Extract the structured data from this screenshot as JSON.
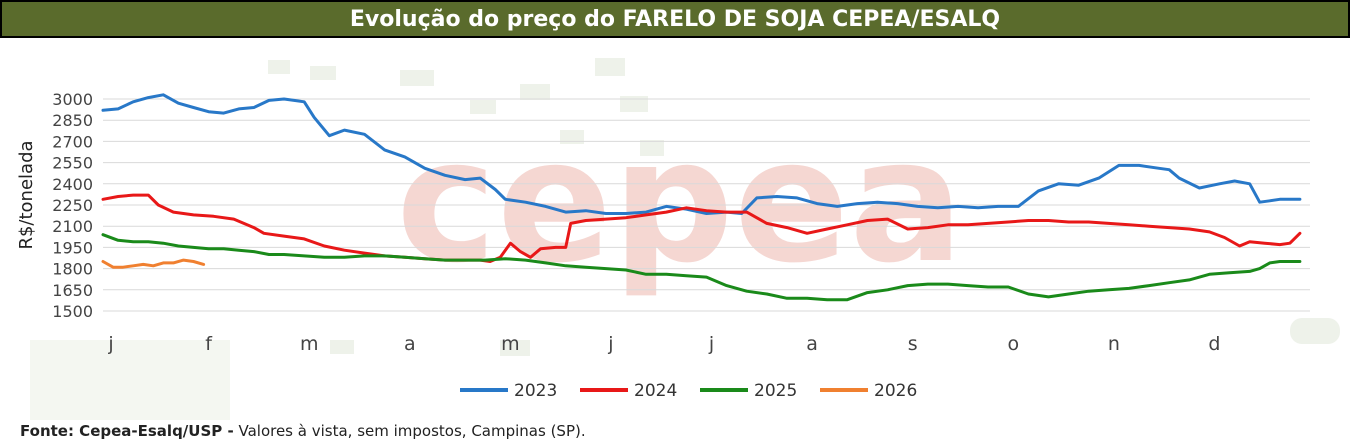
{
  "header": {
    "title": "Evolução do preço do FARELO DE SOJA CEPEA/ESALQ"
  },
  "watermark": {
    "text": "cepea",
    "color": "#e9a79d"
  },
  "footer": {
    "source_bold": "Fonte: Cepea-Esalq/USP -",
    "source_text": " Valores à vista, sem impostos, Campinas (SP)."
  },
  "chart_data": {
    "type": "line",
    "title": "Evolução do preço do FARELO DE SOJA CEPEA/ESALQ",
    "xlabel": "",
    "ylabel": "R$/tonelada",
    "ylim": [
      1500,
      3000
    ],
    "yticks": [
      1500,
      1650,
      1800,
      1950,
      2100,
      2250,
      2400,
      2550,
      2700,
      2850,
      3000
    ],
    "x_ticklabels": [
      "j",
      "f",
      "m",
      "a",
      "m",
      "j",
      "j",
      "a",
      "s",
      "o",
      "n",
      "d"
    ],
    "x_unit": "month index (0 = start of January, 12 = end of December)",
    "grid": true,
    "legend_position": "bottom-center",
    "series": [
      {
        "name": "2023",
        "color": "#2878c8",
        "x": [
          0,
          0.15,
          0.3,
          0.45,
          0.6,
          0.75,
          0.9,
          1.05,
          1.2,
          1.35,
          1.5,
          1.65,
          1.8,
          1.9,
          2.0,
          2.1,
          2.25,
          2.4,
          2.6,
          2.8,
          3.0,
          3.2,
          3.4,
          3.6,
          3.75,
          3.9,
          4.0,
          4.2,
          4.4,
          4.6,
          4.8,
          5.0,
          5.2,
          5.4,
          5.6,
          5.8,
          6.0,
          6.2,
          6.35,
          6.5,
          6.7,
          6.9,
          7.1,
          7.3,
          7.5,
          7.7,
          7.9,
          8.1,
          8.3,
          8.5,
          8.7,
          8.9,
          9.1,
          9.3,
          9.5,
          9.7,
          9.9,
          10.1,
          10.3,
          10.5,
          10.6,
          10.7,
          10.9,
          11.1,
          11.25,
          11.4,
          11.5,
          11.6,
          11.7,
          11.9
        ],
        "values": [
          2920,
          2930,
          2980,
          3010,
          3030,
          2970,
          2940,
          2910,
          2900,
          2930,
          2940,
          2990,
          3000,
          2990,
          2980,
          2870,
          2740,
          2780,
          2750,
          2640,
          2590,
          2510,
          2460,
          2430,
          2440,
          2360,
          2290,
          2270,
          2240,
          2200,
          2210,
          2190,
          2190,
          2200,
          2240,
          2220,
          2190,
          2200,
          2190,
          2300,
          2310,
          2300,
          2260,
          2240,
          2260,
          2270,
          2260,
          2240,
          2230,
          2240,
          2230,
          2240,
          2240,
          2350,
          2400,
          2390,
          2440,
          2530,
          2530,
          2510,
          2500,
          2440,
          2370,
          2400,
          2420,
          2400,
          2270,
          2280,
          2290,
          2290
        ]
      },
      {
        "name": "2024",
        "color": "#e81818",
        "x": [
          0,
          0.15,
          0.3,
          0.45,
          0.55,
          0.7,
          0.9,
          1.1,
          1.3,
          1.5,
          1.6,
          1.8,
          2.0,
          2.2,
          2.4,
          2.6,
          2.8,
          3.0,
          3.2,
          3.4,
          3.6,
          3.75,
          3.85,
          3.95,
          4.05,
          4.15,
          4.25,
          4.35,
          4.5,
          4.6,
          4.65,
          4.8,
          5.0,
          5.2,
          5.4,
          5.6,
          5.8,
          6.0,
          6.2,
          6.4,
          6.6,
          6.8,
          7.0,
          7.2,
          7.4,
          7.6,
          7.8,
          8.0,
          8.2,
          8.4,
          8.6,
          8.8,
          9.0,
          9.2,
          9.4,
          9.6,
          9.8,
          10.0,
          10.2,
          10.4,
          10.6,
          10.8,
          11.0,
          11.15,
          11.3,
          11.4,
          11.55,
          11.7,
          11.8,
          11.9
        ],
        "values": [
          2290,
          2310,
          2320,
          2320,
          2250,
          2200,
          2180,
          2170,
          2150,
          2090,
          2050,
          2030,
          2010,
          1960,
          1930,
          1910,
          1890,
          1880,
          1870,
          1860,
          1860,
          1860,
          1850,
          1880,
          1980,
          1920,
          1880,
          1940,
          1950,
          1950,
          2120,
          2140,
          2150,
          2160,
          2180,
          2200,
          2230,
          2210,
          2200,
          2200,
          2120,
          2090,
          2050,
          2080,
          2110,
          2140,
          2150,
          2080,
          2090,
          2110,
          2110,
          2120,
          2130,
          2140,
          2140,
          2130,
          2130,
          2120,
          2110,
          2100,
          2090,
          2080,
          2060,
          2020,
          1960,
          1990,
          1980,
          1970,
          1980,
          2050
        ]
      },
      {
        "name": "2025",
        "color": "#1a8a1a",
        "x": [
          0,
          0.15,
          0.3,
          0.45,
          0.6,
          0.75,
          0.9,
          1.05,
          1.2,
          1.35,
          1.5,
          1.65,
          1.8,
          2.0,
          2.2,
          2.4,
          2.6,
          2.8,
          3.0,
          3.2,
          3.4,
          3.6,
          3.8,
          4.0,
          4.2,
          4.4,
          4.6,
          4.8,
          5.0,
          5.2,
          5.4,
          5.6,
          5.8,
          6.0,
          6.2,
          6.4,
          6.6,
          6.8,
          7.0,
          7.2,
          7.4,
          7.6,
          7.8,
          8.0,
          8.2,
          8.4,
          8.6,
          8.8,
          9.0,
          9.2,
          9.4,
          9.6,
          9.8,
          10.0,
          10.2,
          10.4,
          10.6,
          10.8,
          11.0,
          11.2,
          11.4,
          11.5,
          11.6,
          11.7,
          11.9
        ],
        "values": [
          2040,
          2000,
          1990,
          1990,
          1980,
          1960,
          1950,
          1940,
          1940,
          1930,
          1920,
          1900,
          1900,
          1890,
          1880,
          1880,
          1890,
          1890,
          1880,
          1870,
          1860,
          1860,
          1860,
          1870,
          1860,
          1840,
          1820,
          1810,
          1800,
          1790,
          1760,
          1760,
          1750,
          1740,
          1680,
          1640,
          1620,
          1590,
          1590,
          1580,
          1580,
          1630,
          1650,
          1680,
          1690,
          1690,
          1680,
          1670,
          1670,
          1620,
          1600,
          1620,
          1640,
          1650,
          1660,
          1680,
          1700,
          1720,
          1760,
          1770,
          1780,
          1800,
          1840,
          1850,
          1850
        ]
      },
      {
        "name": "2026",
        "color": "#f08030",
        "x": [
          0,
          0.1,
          0.2,
          0.3,
          0.4,
          0.5,
          0.6,
          0.7,
          0.8,
          0.9,
          1.0
        ],
        "values": [
          1850,
          1810,
          1810,
          1820,
          1830,
          1820,
          1840,
          1840,
          1860,
          1850,
          1830
        ]
      }
    ]
  }
}
